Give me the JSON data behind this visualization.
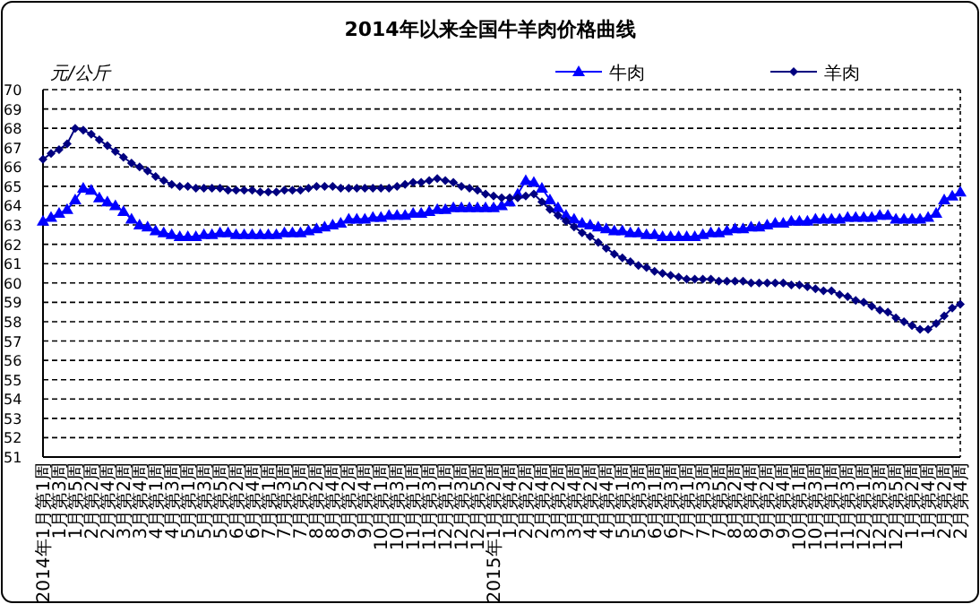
{
  "chart_data": {
    "type": "line",
    "title": "2014年以来全国牛羊肉价格曲线",
    "ylabel": "元/公斤",
    "categories": [
      "2014年1月第1周",
      null,
      "1月第3周",
      null,
      "1月第5周",
      null,
      "2月第2周",
      null,
      "2月第4周",
      null,
      "3月第2周",
      null,
      "3月第4周",
      null,
      "4月第1周",
      null,
      "4月第3周",
      null,
      "5月第1周",
      null,
      "5月第3周",
      null,
      "5月第5周",
      null,
      "6月第2周",
      null,
      "6月第4周",
      null,
      "7月第1周",
      null,
      "7月第3周",
      null,
      "7月第5周",
      null,
      "8月第2周",
      null,
      "8月第4周",
      null,
      "9月第2周",
      null,
      "9月第4周",
      null,
      "10月第1周",
      null,
      "10月第3周",
      null,
      "11月第1周",
      null,
      "11月第3周",
      null,
      "12月第1周",
      null,
      "12月第3周",
      null,
      "12月第5周",
      null,
      "2015年1月第2周",
      null,
      "1月第4周",
      null,
      "2月第2周",
      null,
      "2月第4周",
      null,
      "3月第2周",
      null,
      "3月第4周",
      null,
      "4月第2周",
      null,
      "4月第4周",
      null,
      "5月第1周",
      null,
      "5月第3周",
      null,
      "6月第1周",
      null,
      "6月第3周",
      null,
      "7月第1周",
      null,
      "7月第3周",
      null,
      "7月第5周",
      null,
      "8月第2周",
      null,
      "8月第4周",
      null,
      "9月第2周",
      null,
      "9月第4周",
      null,
      "10月第1周",
      null,
      "10月第3周",
      null,
      "11月第1周",
      null,
      "11月第3周",
      null,
      "12月第1周",
      null,
      "12月第3周",
      null,
      "12月第5周",
      null,
      "1月第2周",
      null,
      "1月第4周",
      null,
      "2月第2周",
      null,
      "2月第4周"
    ],
    "series": [
      {
        "name": "牛肉",
        "color": "#0000ff",
        "marker": "triangle",
        "values": [
          63.2,
          63.4,
          63.6,
          63.8,
          64.3,
          64.9,
          64.8,
          64.4,
          64.2,
          64.0,
          63.7,
          63.3,
          63.0,
          62.9,
          62.7,
          62.6,
          62.5,
          62.4,
          62.4,
          62.4,
          62.5,
          62.5,
          62.6,
          62.6,
          62.5,
          62.5,
          62.5,
          62.5,
          62.5,
          62.5,
          62.6,
          62.6,
          62.6,
          62.7,
          62.8,
          62.9,
          63.0,
          63.1,
          63.3,
          63.3,
          63.3,
          63.4,
          63.4,
          63.5,
          63.5,
          63.5,
          63.6,
          63.6,
          63.7,
          63.8,
          63.8,
          63.9,
          63.9,
          63.9,
          63.9,
          63.9,
          63.9,
          64.0,
          64.2,
          64.6,
          65.3,
          65.2,
          64.9,
          64.3,
          63.9,
          63.5,
          63.3,
          63.1,
          63.0,
          62.9,
          62.8,
          62.7,
          62.7,
          62.6,
          62.6,
          62.5,
          62.5,
          62.4,
          62.4,
          62.4,
          62.4,
          62.4,
          62.5,
          62.6,
          62.6,
          62.7,
          62.8,
          62.8,
          62.9,
          62.9,
          63.0,
          63.1,
          63.1,
          63.2,
          63.2,
          63.2,
          63.3,
          63.3,
          63.3,
          63.3,
          63.4,
          63.4,
          63.4,
          63.4,
          63.5,
          63.5,
          63.3,
          63.3,
          63.3,
          63.3,
          63.4,
          63.6,
          64.3,
          64.5,
          64.7
        ]
      },
      {
        "name": "羊肉",
        "color": "#000080",
        "marker": "diamond",
        "values": [
          66.4,
          66.7,
          66.9,
          67.2,
          68.0,
          67.9,
          67.7,
          67.4,
          67.1,
          66.8,
          66.5,
          66.2,
          66.0,
          65.8,
          65.5,
          65.3,
          65.1,
          65.0,
          65.0,
          64.9,
          64.9,
          64.9,
          64.9,
          64.8,
          64.8,
          64.8,
          64.8,
          64.7,
          64.7,
          64.7,
          64.8,
          64.8,
          64.8,
          64.9,
          65.0,
          65.0,
          65.0,
          64.9,
          64.9,
          64.9,
          64.9,
          64.9,
          64.9,
          64.9,
          65.0,
          65.1,
          65.2,
          65.2,
          65.3,
          65.4,
          65.3,
          65.2,
          65.0,
          64.9,
          64.8,
          64.6,
          64.5,
          64.4,
          64.4,
          64.4,
          64.5,
          64.6,
          64.2,
          63.8,
          63.5,
          63.2,
          62.9,
          62.6,
          62.4,
          62.1,
          61.8,
          61.5,
          61.3,
          61.1,
          60.9,
          60.8,
          60.6,
          60.5,
          60.4,
          60.3,
          60.2,
          60.2,
          60.2,
          60.2,
          60.1,
          60.1,
          60.1,
          60.1,
          60.0,
          60.0,
          60.0,
          60.0,
          60.0,
          59.9,
          59.9,
          59.8,
          59.7,
          59.6,
          59.6,
          59.4,
          59.3,
          59.1,
          59.0,
          58.8,
          58.6,
          58.5,
          58.2,
          58.0,
          57.8,
          57.6,
          57.6,
          57.9,
          58.3,
          58.7,
          58.9
        ]
      }
    ],
    "ylim": [
      51,
      70
    ],
    "yticks": [
      51,
      52,
      53,
      54,
      55,
      56,
      57,
      58,
      59,
      60,
      61,
      62,
      63,
      64,
      65,
      66,
      67,
      68,
      69,
      70
    ],
    "grid": "y",
    "legend": "top right",
    "line_style": "solid"
  }
}
